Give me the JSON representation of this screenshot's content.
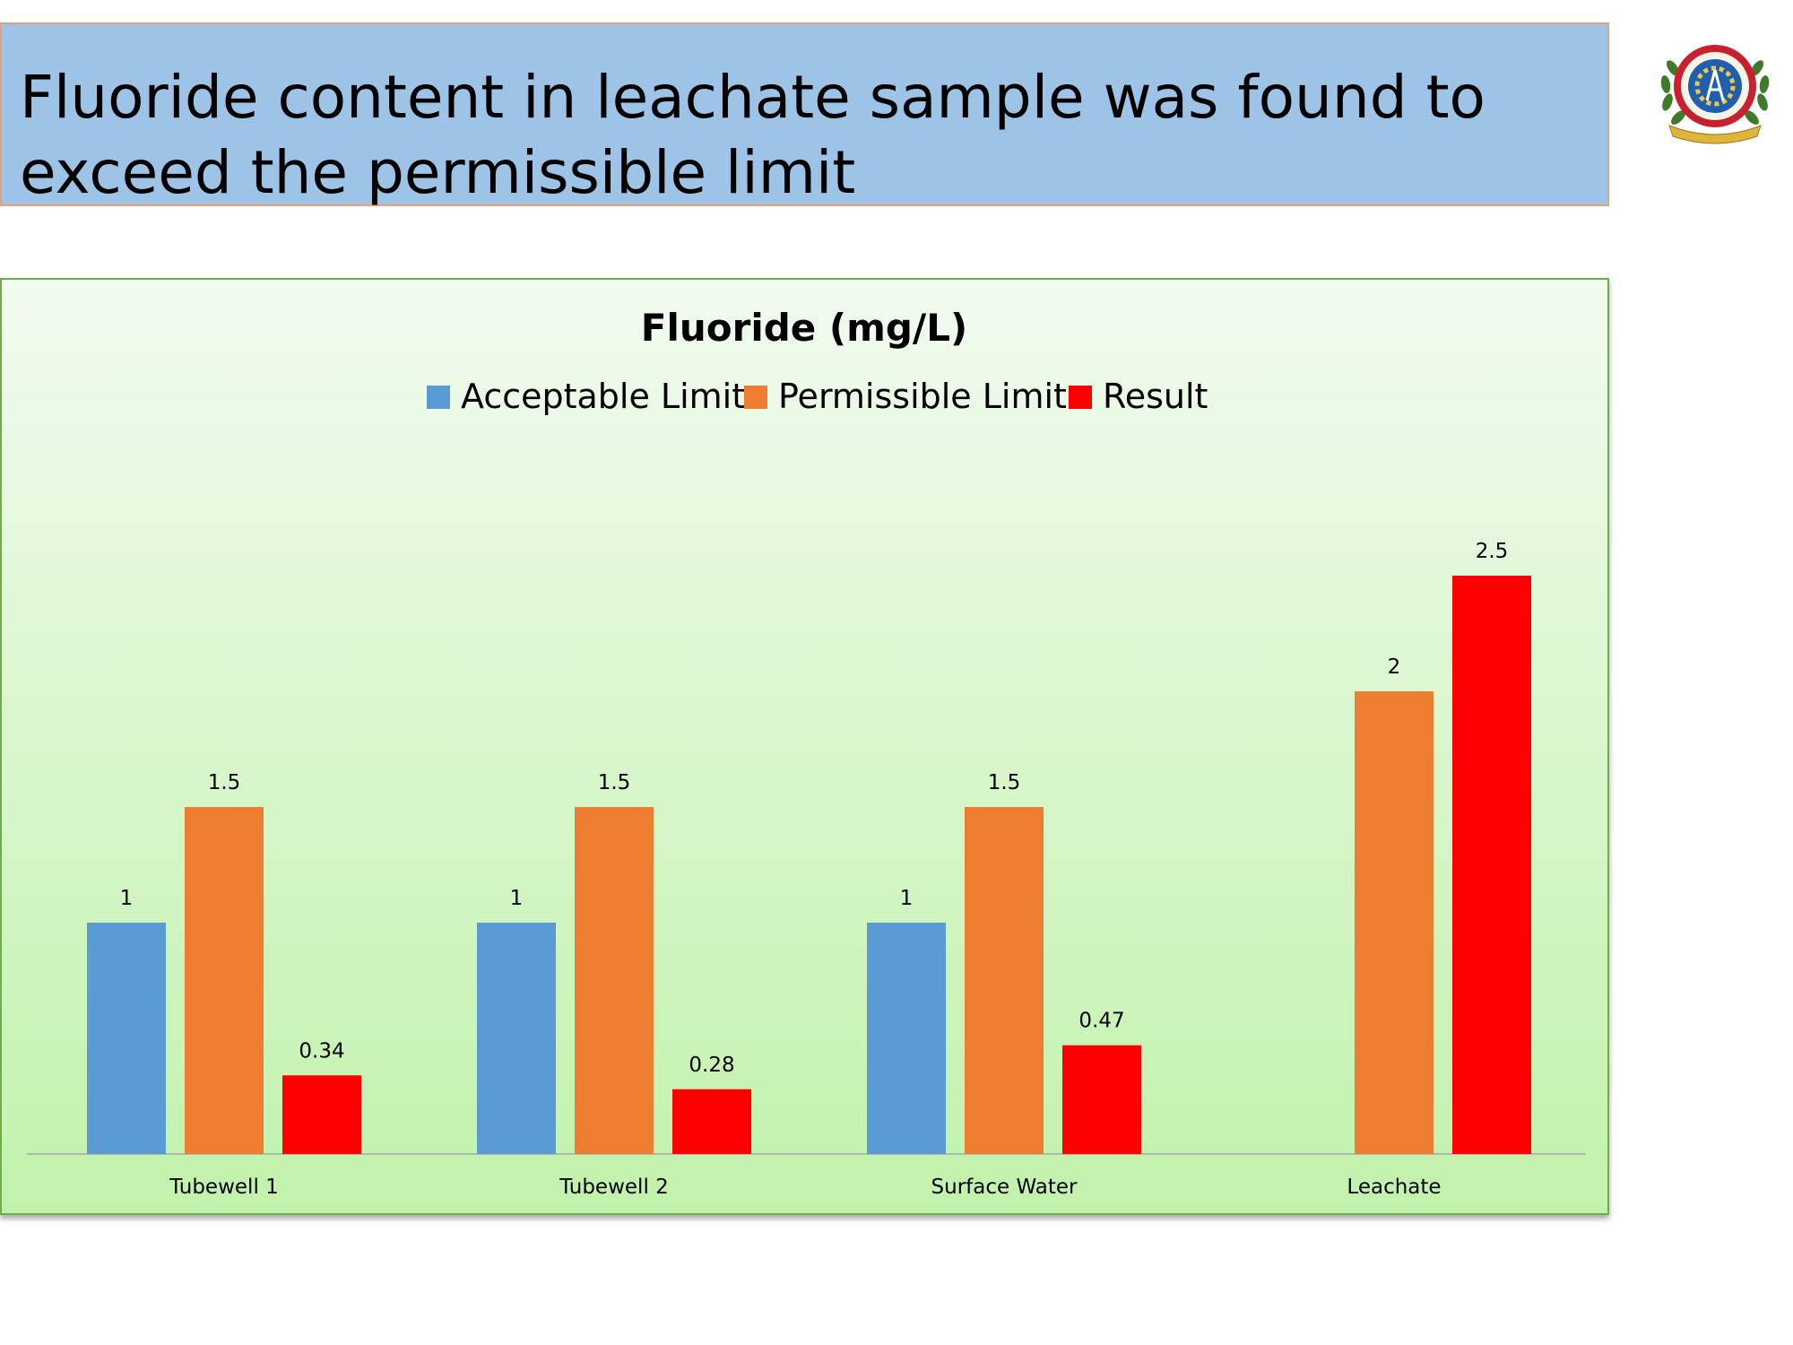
{
  "slide": {
    "title": "Fluoride content in leachate sample was found to exceed the permissible limit"
  },
  "chart_data": {
    "type": "bar",
    "title": "Fluoride (mg/L)",
    "categories": [
      "Tubewell 1",
      "Tubewell 2",
      "Surface Water",
      "Leachate"
    ],
    "series": [
      {
        "name": "Acceptable Limit",
        "color": "#5b9bd5",
        "values": [
          1,
          1,
          1,
          null
        ]
      },
      {
        "name": "Permissible Limit",
        "color": "#ed7d31",
        "values": [
          1.5,
          1.5,
          1.5,
          2
        ]
      },
      {
        "name": "Result",
        "color": "#ff0000",
        "values": [
          0.34,
          0.28,
          0.47,
          2.5
        ]
      }
    ],
    "xlabel": "",
    "ylabel": "",
    "ylim": [
      0,
      2.5
    ],
    "grid": false,
    "legend": "top-center"
  }
}
